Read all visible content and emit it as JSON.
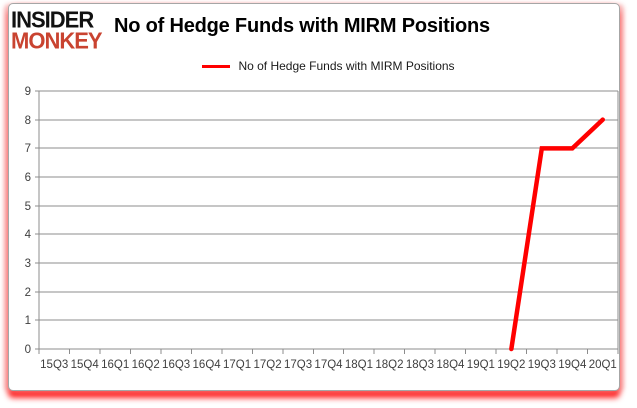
{
  "logo": {
    "line1": "INSIDER",
    "line2": "MONKEY"
  },
  "header": {
    "title": "No of Hedge Funds with MIRM Positions"
  },
  "legend": {
    "label": "No of Hedge Funds with MIRM Positions"
  },
  "colors": {
    "series_line": "#ff0000",
    "logo_red": "#c94330",
    "gridline": "#8c8c8c",
    "axis": "#8c8c8c",
    "tick_label": "#404040",
    "frame_glow": "#ff0000"
  },
  "chart_data": {
    "type": "line",
    "title": "No of Hedge Funds with MIRM Positions",
    "xlabel": "",
    "ylabel": "",
    "categories": [
      "15Q3",
      "15Q4",
      "16Q1",
      "16Q2",
      "16Q3",
      "16Q4",
      "17Q1",
      "17Q2",
      "17Q3",
      "17Q4",
      "18Q1",
      "18Q2",
      "18Q3",
      "18Q4",
      "19Q1",
      "19Q2",
      "19Q3",
      "19Q4",
      "20Q1"
    ],
    "series": [
      {
        "name": "No of Hedge Funds with MIRM Positions",
        "color": "#ff0000",
        "values": [
          null,
          null,
          null,
          null,
          null,
          null,
          null,
          null,
          null,
          null,
          null,
          null,
          null,
          null,
          null,
          0,
          7,
          7,
          8
        ]
      }
    ],
    "ylim": [
      0,
      9
    ],
    "ytick_interval": 1,
    "grid": "horizontal",
    "legend_position": "top-center"
  }
}
